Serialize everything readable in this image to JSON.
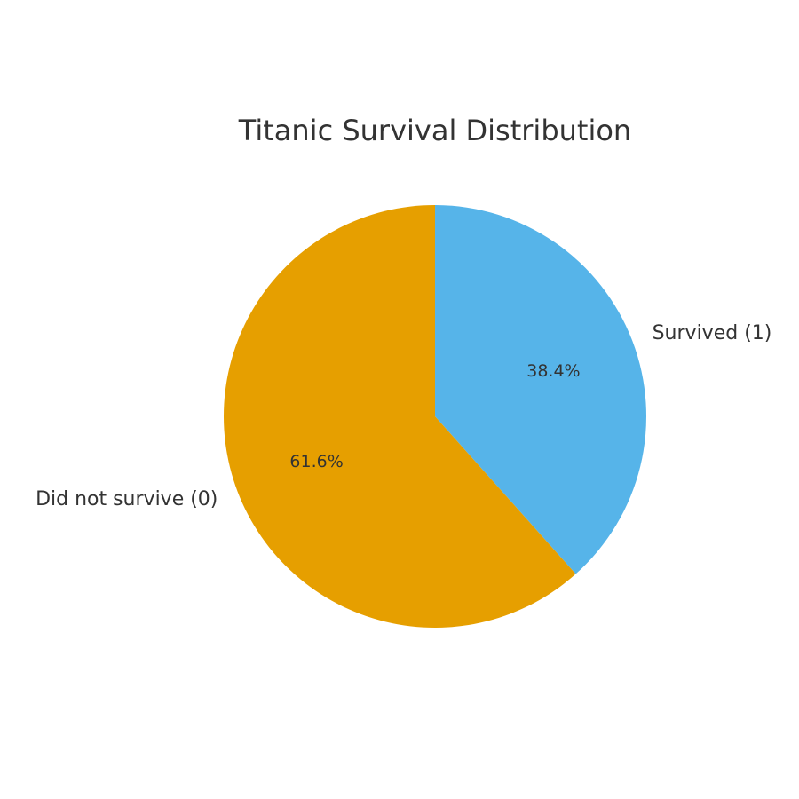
{
  "chart_data": {
    "type": "pie",
    "title": "Titanic Survival Distribution",
    "start_angle_deg": 90,
    "direction": "clockwise",
    "slices": [
      {
        "label": "Survived (1)",
        "value": 38.4,
        "pct_label": "38.4%",
        "color": "#56B4E9"
      },
      {
        "label": "Did not survive (0)",
        "value": 61.6,
        "pct_label": "61.6%",
        "color": "#E69F00"
      }
    ],
    "legend": "none"
  }
}
